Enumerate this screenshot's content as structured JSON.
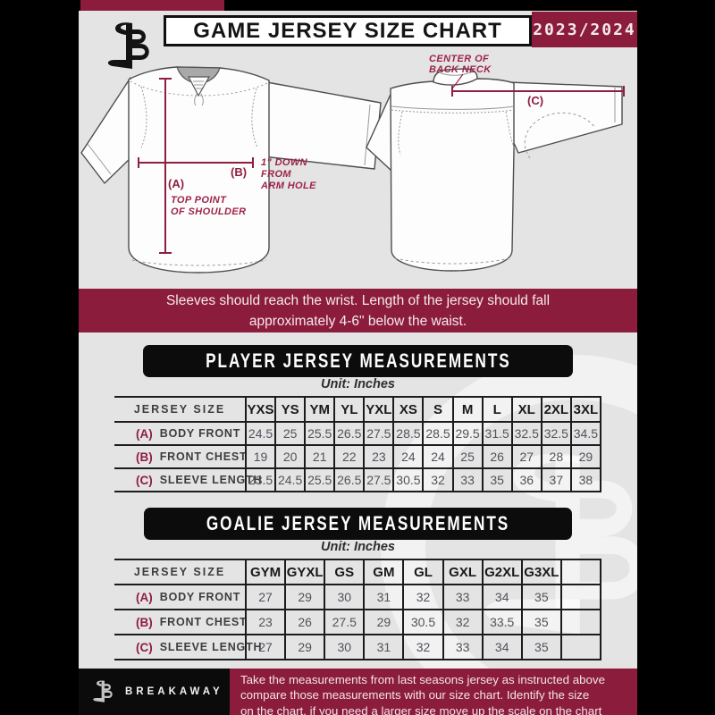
{
  "page": {
    "bg": "#e4e4e5",
    "accent_maroon": "#8b1c3c",
    "ink_black": "#0d0d0d"
  },
  "header": {
    "logo_icon": "breakaway-b-logo",
    "title": "GAME JERSEY SIZE CHART",
    "season": "2023/2024"
  },
  "diagram": {
    "front": {
      "a_key": "(A)",
      "a_note1": "TOP POINT",
      "a_note2": "OF SHOULDER",
      "b_key": "(B)",
      "b_note1": "1\" DOWN",
      "b_note2": "FROM",
      "b_note3": "ARM HOLE"
    },
    "back": {
      "c_key": "(C)",
      "c_note1": "CENTER OF",
      "c_note2": "BACK NECK"
    }
  },
  "banner": {
    "line1": "Sleeves should reach the wrist. Length of the jersey should fall",
    "line2": "approximately 4-6\" below the waist."
  },
  "player_section": {
    "title": "PLAYER JERSEY MEASUREMENTS",
    "unit": "Unit: Inches"
  },
  "goalie_section": {
    "title": "GOALIE JERSEY MEASUREMENTS",
    "unit": "Unit: Inches"
  },
  "player_table": {
    "header": [
      "JERSEY SIZE",
      "YXS",
      "YS",
      "YM",
      "YL",
      "YXL",
      "XS",
      "S",
      "M",
      "L",
      "XL",
      "2XL",
      "3XL"
    ],
    "rows": [
      {
        "key": "(A)",
        "label": "BODY FRONT",
        "values": [
          "24.5",
          "25",
          "25.5",
          "26.5",
          "27.5",
          "28.5",
          "28.5",
          "29.5",
          "31.5",
          "32.5",
          "32.5",
          "34.5"
        ]
      },
      {
        "key": "(B)",
        "label": "FRONT CHEST",
        "values": [
          "19",
          "20",
          "21",
          "22",
          "23",
          "24",
          "24",
          "25",
          "26",
          "27",
          "28",
          "29"
        ]
      },
      {
        "key": "(C)",
        "label": "SLEEVE LENGTH",
        "values": [
          "23.5",
          "24.5",
          "25.5",
          "26.5",
          "27.5",
          "30.5",
          "32",
          "33",
          "35",
          "36",
          "37",
          "38"
        ]
      }
    ]
  },
  "goalie_table": {
    "header": [
      "JERSEY SIZE",
      "GYM",
      "GYXL",
      "GS",
      "GM",
      "GL",
      "GXL",
      "G2XL",
      "G3XL",
      ""
    ],
    "rows": [
      {
        "key": "(A)",
        "label": "BODY FRONT",
        "values": [
          "27",
          "29",
          "30",
          "31",
          "32",
          "33",
          "34",
          "35",
          ""
        ]
      },
      {
        "key": "(B)",
        "label": "FRONT CHEST",
        "values": [
          "23",
          "26",
          "27.5",
          "29",
          "30.5",
          "32",
          "33.5",
          "35",
          ""
        ]
      },
      {
        "key": "(C)",
        "label": "SLEEVE LENGTH",
        "values": [
          "27",
          "29",
          "30",
          "31",
          "32",
          "33",
          "34",
          "35",
          ""
        ]
      }
    ]
  },
  "footer": {
    "brand": "BREAKAWAY",
    "line1": "Take the measurements from last seasons jersey as instructed above",
    "line2": "compare those measurements  with our size chart. Identify the size",
    "line3": "on the chart, if you need a larger size move up the scale on the chart"
  }
}
